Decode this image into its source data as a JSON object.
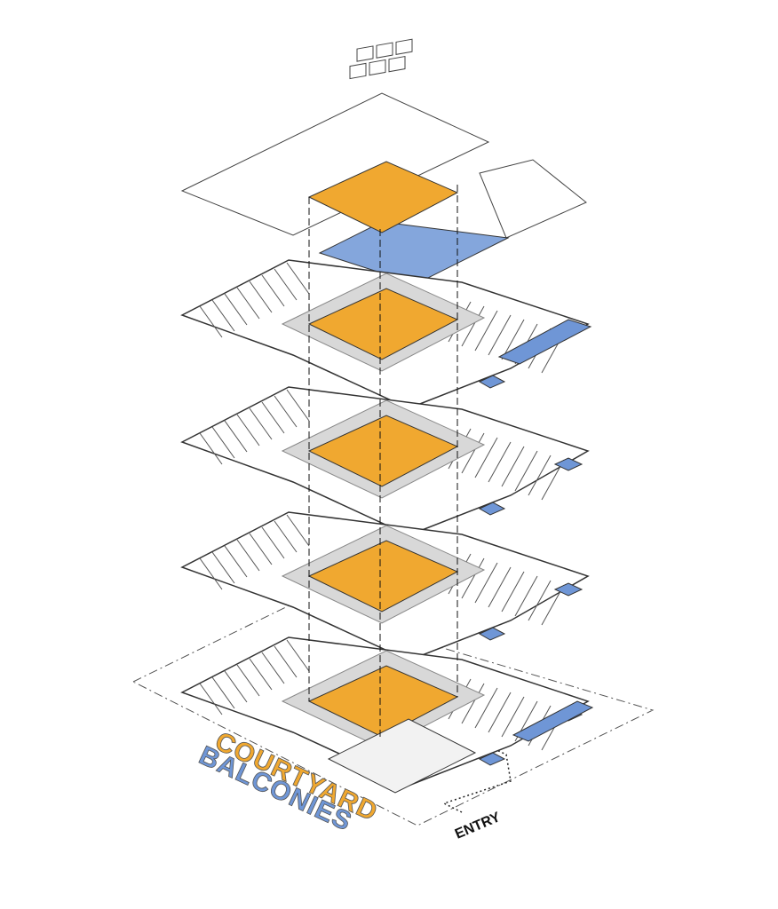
{
  "labels": {
    "courtyard": "COURTYARD",
    "balconies": "BALCONIES",
    "entry": "ENTRY"
  }
}
